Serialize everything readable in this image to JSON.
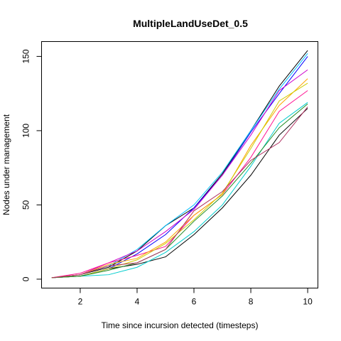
{
  "chart_data": {
    "type": "line",
    "title": "MultipleLandUseDet_0.5",
    "xlabel": "Time since incursion detected (timesteps)",
    "ylabel": "Nodes under management",
    "xlim": [
      0.64,
      10.36
    ],
    "ylim": [
      -6,
      160
    ],
    "x_ticks": [
      2,
      4,
      6,
      8,
      10
    ],
    "y_ticks": [
      0,
      50,
      100,
      150
    ],
    "grid": false,
    "legend": "none",
    "x": [
      1,
      2,
      3,
      4,
      5,
      6,
      7,
      8,
      9,
      10
    ],
    "series": [
      {
        "color": "#000000",
        "values": [
          1,
          3,
          8,
          19,
          36,
          48,
          71,
          100,
          130,
          154
        ]
      },
      {
        "color": "#000000",
        "values": [
          1,
          2,
          7,
          10,
          15,
          30,
          48,
          70,
          97,
          115
        ]
      },
      {
        "color": "#00CDCD",
        "values": [
          1,
          2,
          3,
          8,
          18,
          32,
          50,
          76,
          105,
          119
        ]
      },
      {
        "color": "#0000FF",
        "values": [
          1,
          2,
          7,
          17,
          30,
          48,
          70,
          99,
          125,
          150
        ]
      },
      {
        "color": "#00BFFF",
        "values": [
          1,
          3,
          9,
          20,
          36,
          50,
          72,
          100,
          128,
          152
        ]
      },
      {
        "color": "#CD00CD",
        "values": [
          1,
          3,
          11,
          19,
          32,
          47,
          70,
          97,
          127,
          141
        ]
      },
      {
        "color": "#FF1493",
        "values": [
          1,
          4,
          11,
          16,
          22,
          43,
          57,
          82,
          113,
          127
        ]
      },
      {
        "color": "#FFA500",
        "values": [
          1,
          3,
          10,
          14,
          25,
          43,
          57,
          90,
          117,
          135
        ]
      },
      {
        "color": "#CDCD00",
        "values": [
          1,
          2,
          7,
          13,
          24,
          40,
          58,
          88,
          120,
          132
        ]
      },
      {
        "color": "#228B22",
        "values": [
          1,
          2,
          6,
          11,
          20,
          39,
          56,
          78,
          102,
          118
        ]
      },
      {
        "color": "#B03060",
        "values": [
          1,
          3,
          9,
          11,
          20,
          46,
          59,
          80,
          92,
          116
        ]
      }
    ]
  }
}
